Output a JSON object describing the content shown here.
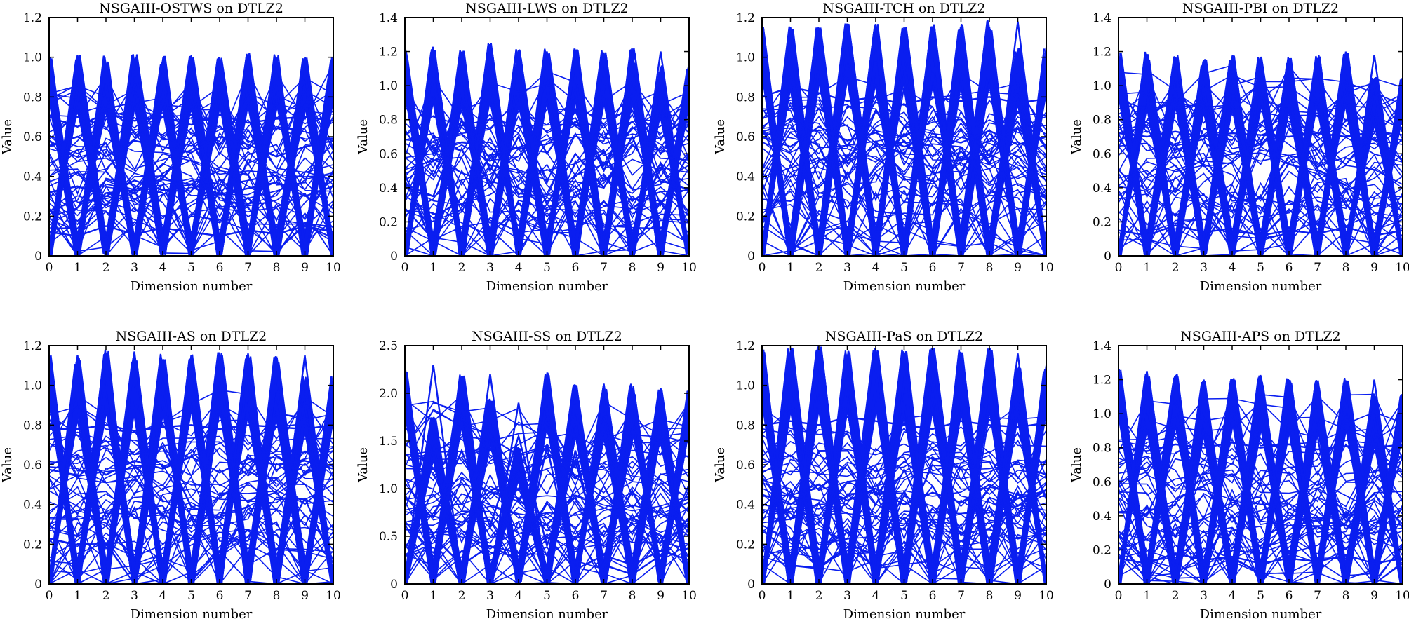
{
  "figure": {
    "line_color": "#0a1ef0",
    "background": "#ffffff"
  },
  "chart_data": [
    {
      "type": "line",
      "title": "NSGAIII-OSTWS on DTLZ2",
      "xlabel": "Dimension number",
      "ylabel": "Value",
      "xlim": [
        0,
        10
      ],
      "ylim": [
        0,
        1.2
      ],
      "xticks": [
        0,
        1,
        2,
        3,
        4,
        5,
        6,
        7,
        8,
        9,
        10
      ],
      "yticks": [
        0,
        0.2,
        0.4,
        0.6,
        0.8,
        1.0,
        1.2
      ],
      "ytick_labels": [
        "0",
        "0.2",
        "0.4",
        "0.6",
        "0.8",
        "1.0",
        "1.2"
      ],
      "grid": false,
      "peaks": [
        1.0,
        1.01,
        1.01,
        1.02,
        1.01,
        1.01,
        1.01,
        1.02,
        1.02,
        1.0
      ],
      "series": [
        {
          "values": [
            1.0,
            0.05,
            0.95,
            0.06,
            0.9,
            0.05,
            0.98,
            0.06,
            0.92,
            0.05,
            0.98
          ]
        },
        {
          "values": [
            0.05,
            1.01,
            0.06,
            0.97,
            0.05,
            0.99,
            0.06,
            0.96,
            0.05,
            1.0,
            0.06
          ]
        },
        {
          "values": [
            0.55,
            0.6,
            0.5,
            0.58,
            0.55,
            0.52,
            0.6,
            0.56,
            0.5,
            0.55,
            0.58
          ]
        },
        {
          "values": [
            0.32,
            0.35,
            0.3,
            0.38,
            0.33,
            0.36,
            0.31,
            0.34,
            0.37,
            0.3,
            0.35
          ]
        },
        {
          "values": [
            0.12,
            0.1,
            0.15,
            0.11,
            0.14,
            0.12,
            0.1,
            0.13,
            0.11,
            0.15,
            0.12
          ]
        },
        {
          "values": [
            0.7,
            0.65,
            0.72,
            0.68,
            0.7,
            0.66,
            0.71,
            0.67,
            0.69,
            0.7,
            0.68
          ]
        }
      ]
    },
    {
      "type": "line",
      "title": "NSGAIII-LWS on DTLZ2",
      "xlabel": "Dimension number",
      "ylabel": "Value",
      "xlim": [
        0,
        10
      ],
      "ylim": [
        0,
        1.4
      ],
      "xticks": [
        0,
        1,
        2,
        3,
        4,
        5,
        6,
        7,
        8,
        9,
        10
      ],
      "yticks": [
        0,
        0.2,
        0.4,
        0.6,
        0.8,
        1.0,
        1.2,
        1.4
      ],
      "ytick_labels": [
        "0",
        "0.2",
        "0.4",
        "0.6",
        "0.8",
        "1.0",
        "1.2",
        "1.4"
      ],
      "grid": false,
      "peaks": [
        1.22,
        1.23,
        1.21,
        1.25,
        1.22,
        1.22,
        1.22,
        1.21,
        1.23,
        1.12
      ],
      "series": [
        {
          "values": [
            1.15,
            0.02,
            1.1,
            0.02,
            1.2,
            0.02,
            1.15,
            0.02,
            1.2,
            0.02,
            1.05
          ]
        },
        {
          "values": [
            0.02,
            1.2,
            0.02,
            1.18,
            0.02,
            1.2,
            0.02,
            1.15,
            0.02,
            1.2,
            0.02
          ]
        },
        {
          "values": [
            0.42,
            0.35,
            0.8,
            0.4,
            0.7,
            0.3,
            0.6,
            0.4,
            0.7,
            0.3,
            0.6
          ]
        },
        {
          "values": [
            0.9,
            0.6,
            0.95,
            0.5,
            0.9,
            0.6,
            0.85,
            0.5,
            0.9,
            0.6,
            0.8
          ]
        }
      ]
    },
    {
      "type": "line",
      "title": "NSGAIII-TCH on DTLZ2",
      "xlabel": "Dimension number",
      "ylabel": "Value",
      "xlim": [
        0,
        10
      ],
      "ylim": [
        0,
        1.2
      ],
      "xticks": [
        0,
        1,
        2,
        3,
        4,
        5,
        6,
        7,
        8,
        9,
        10
      ],
      "yticks": [
        0,
        0.2,
        0.4,
        0.6,
        0.8,
        1.0,
        1.2
      ],
      "ytick_labels": [
        "0",
        "0.2",
        "0.4",
        "0.6",
        "0.8",
        "1.0",
        "1.2"
      ],
      "grid": false,
      "peaks": [
        1.16,
        1.16,
        1.15,
        1.17,
        1.17,
        1.16,
        1.17,
        1.17,
        1.19,
        1.05
      ],
      "series": [
        {
          "values": [
            1.1,
            0.02,
            1.12,
            0.03,
            1.1,
            0.02,
            1.12,
            0.03,
            1.15,
            0.02,
            1.0
          ]
        },
        {
          "values": [
            0.02,
            1.15,
            0.03,
            1.14,
            0.02,
            1.15,
            0.03,
            1.14,
            0.02,
            1.18,
            0.03
          ]
        },
        {
          "values": [
            0.8,
            0.85,
            0.82,
            0.78,
            0.8,
            0.76,
            0.8,
            0.78,
            0.8,
            0.77,
            0.79
          ]
        },
        {
          "values": [
            0.6,
            0.55,
            0.65,
            0.58,
            0.62,
            0.55,
            0.6,
            0.57,
            0.63,
            0.56,
            0.6
          ]
        }
      ]
    },
    {
      "type": "line",
      "title": "NSGAIII-PBI on DTLZ2",
      "xlabel": "Dimension number",
      "ylabel": "Value",
      "xlim": [
        0,
        10
      ],
      "ylim": [
        0,
        1.4
      ],
      "xticks": [
        0,
        1,
        2,
        3,
        4,
        5,
        6,
        7,
        8,
        9,
        10
      ],
      "yticks": [
        0,
        0.2,
        0.4,
        0.6,
        0.8,
        1.0,
        1.2,
        1.4
      ],
      "ytick_labels": [
        "0",
        "0.2",
        "0.4",
        "0.6",
        "0.8",
        "1.0",
        "1.2",
        "1.4"
      ],
      "grid": false,
      "peaks": [
        1.2,
        1.2,
        1.18,
        1.16,
        1.18,
        1.17,
        1.17,
        1.18,
        1.2,
        1.05
      ],
      "series": [
        {
          "values": [
            1.15,
            0.03,
            1.1,
            0.03,
            1.12,
            0.03,
            1.1,
            0.03,
            1.15,
            0.03,
            1.0
          ]
        },
        {
          "values": [
            0.03,
            1.18,
            0.03,
            1.15,
            0.03,
            1.15,
            0.03,
            1.14,
            0.03,
            1.18,
            0.03
          ]
        },
        {
          "values": [
            0.72,
            0.7,
            0.73,
            0.7,
            0.72,
            0.71,
            0.7,
            0.72,
            0.7,
            0.73,
            0.71
          ]
        },
        {
          "values": [
            0.15,
            0.12,
            0.18,
            0.14,
            0.16,
            0.12,
            0.15,
            0.13,
            0.17,
            0.12,
            0.15
          ]
        }
      ]
    },
    {
      "type": "line",
      "title": "NSGAIII-AS on DTLZ2",
      "xlabel": "Dimension number",
      "ylabel": "Value",
      "xlim": [
        0,
        10
      ],
      "ylim": [
        0,
        1.2
      ],
      "xticks": [
        0,
        1,
        2,
        3,
        4,
        5,
        6,
        7,
        8,
        9,
        10
      ],
      "yticks": [
        0,
        0.2,
        0.4,
        0.6,
        0.8,
        1.0,
        1.2
      ],
      "ytick_labels": [
        "0",
        "0.2",
        "0.4",
        "0.6",
        "0.8",
        "1.0",
        "1.2"
      ],
      "grid": false,
      "peaks": [
        1.16,
        1.14,
        1.18,
        1.15,
        1.16,
        1.16,
        1.17,
        1.16,
        1.15,
        1.05
      ],
      "series": [
        {
          "values": [
            1.12,
            0.02,
            1.1,
            0.02,
            1.12,
            0.02,
            1.1,
            0.02,
            1.12,
            0.02,
            1.0
          ]
        },
        {
          "values": [
            0.02,
            1.15,
            0.02,
            1.17,
            0.02,
            1.15,
            0.02,
            1.16,
            0.02,
            1.15,
            0.02
          ]
        },
        {
          "values": [
            0.78,
            0.78,
            0.8,
            0.77,
            0.79,
            0.8,
            0.78,
            0.8,
            0.79,
            0.78,
            0.8
          ]
        },
        {
          "values": [
            0.6,
            0.65,
            0.55,
            0.62,
            0.58,
            0.64,
            0.56,
            0.63,
            0.6,
            0.62,
            0.58
          ]
        }
      ]
    },
    {
      "type": "line",
      "title": "NSGAIII-SS on DTLZ2",
      "xlabel": "Dimension number",
      "ylabel": "Value",
      "xlim": [
        0,
        10
      ],
      "ylim": [
        0,
        2.5
      ],
      "xticks": [
        0,
        1,
        2,
        3,
        4,
        5,
        6,
        7,
        8,
        9,
        10
      ],
      "yticks": [
        0,
        0.5,
        1.0,
        1.5,
        2.0,
        2.5
      ],
      "ytick_labels": [
        "0",
        "0.5",
        "1.0",
        "1.5",
        "2.0",
        "2.5"
      ],
      "grid": false,
      "peaks": [
        2.3,
        1.75,
        2.2,
        1.95,
        1.45,
        2.22,
        2.1,
        2.08,
        2.1,
        2.05
      ],
      "series": [
        {
          "values": [
            2.1,
            0.05,
            1.7,
            0.05,
            1.9,
            0.05,
            1.4,
            0.05,
            2.0,
            0.05,
            2.05
          ]
        },
        {
          "values": [
            0.05,
            2.3,
            0.05,
            2.2,
            0.05,
            1.45,
            0.05,
            2.1,
            0.05,
            2.05,
            0.05
          ]
        },
        {
          "values": [
            0.9,
            0.7,
            1.4,
            0.6,
            1.55,
            0.4,
            1.3,
            0.2,
            0.1,
            0.3,
            0.7
          ]
        },
        {
          "values": [
            0.3,
            0.5,
            0.2,
            0.4,
            0.25,
            0.5,
            0.15,
            0.3,
            0.2,
            0.35,
            0.25
          ]
        }
      ]
    },
    {
      "type": "line",
      "title": "NSGAIII-PaS on DTLZ2",
      "xlabel": "Dimension number",
      "ylabel": "Value",
      "xlim": [
        0,
        10
      ],
      "ylim": [
        0,
        1.2
      ],
      "xticks": [
        0,
        1,
        2,
        3,
        4,
        5,
        6,
        7,
        8,
        9,
        10
      ],
      "yticks": [
        0,
        0.2,
        0.4,
        0.6,
        0.8,
        1.0,
        1.2
      ],
      "ytick_labels": [
        "0",
        "0.2",
        "0.4",
        "0.6",
        "0.8",
        "1.0",
        "1.2"
      ],
      "grid": false,
      "peaks": [
        1.18,
        1.19,
        1.2,
        1.18,
        1.19,
        1.18,
        1.19,
        1.18,
        1.19,
        1.1
      ],
      "series": [
        {
          "values": [
            1.15,
            0.02,
            1.18,
            0.02,
            1.15,
            0.02,
            1.16,
            0.02,
            1.18,
            0.02,
            1.05
          ]
        },
        {
          "values": [
            0.02,
            1.17,
            0.02,
            1.15,
            0.02,
            1.15,
            0.02,
            1.15,
            0.02,
            1.16,
            0.02
          ]
        },
        {
          "values": [
            0.8,
            0.82,
            0.8,
            0.84,
            0.82,
            0.8,
            0.78,
            0.82,
            0.8,
            0.79,
            0.81
          ]
        },
        {
          "values": [
            0.45,
            0.4,
            0.5,
            0.42,
            0.48,
            0.4,
            0.46,
            0.41,
            0.5,
            0.43,
            0.47
          ]
        }
      ]
    },
    {
      "type": "line",
      "title": "NSGAIII-APS on DTLZ2",
      "xlabel": "Dimension number",
      "ylabel": "Value",
      "xlim": [
        0,
        10
      ],
      "ylim": [
        0,
        1.4
      ],
      "xticks": [
        0,
        1,
        2,
        3,
        4,
        5,
        6,
        7,
        8,
        9,
        10
      ],
      "yticks": [
        0,
        0.2,
        0.4,
        0.6,
        0.8,
        1.0,
        1.2,
        1.4
      ],
      "ytick_labels": [
        "0",
        "0.2",
        "0.4",
        "0.6",
        "0.8",
        "1.0",
        "1.2",
        "1.4"
      ],
      "grid": false,
      "peaks": [
        1.27,
        1.24,
        1.24,
        1.2,
        1.21,
        1.23,
        1.21,
        1.2,
        1.21,
        1.12
      ],
      "series": [
        {
          "values": [
            1.15,
            0.03,
            1.2,
            0.03,
            1.18,
            0.03,
            1.15,
            0.03,
            1.18,
            0.03,
            1.08
          ]
        },
        {
          "values": [
            0.03,
            1.25,
            0.03,
            1.2,
            0.03,
            1.2,
            0.03,
            1.18,
            0.03,
            1.2,
            0.03
          ]
        },
        {
          "values": [
            0.8,
            0.78,
            0.82,
            0.8,
            0.83,
            0.8,
            0.82,
            0.79,
            0.81,
            0.8,
            0.82
          ]
        },
        {
          "values": [
            0.15,
            0.12,
            0.18,
            0.14,
            0.16,
            0.12,
            0.15,
            0.13,
            0.17,
            0.12,
            0.15
          ]
        }
      ]
    }
  ]
}
